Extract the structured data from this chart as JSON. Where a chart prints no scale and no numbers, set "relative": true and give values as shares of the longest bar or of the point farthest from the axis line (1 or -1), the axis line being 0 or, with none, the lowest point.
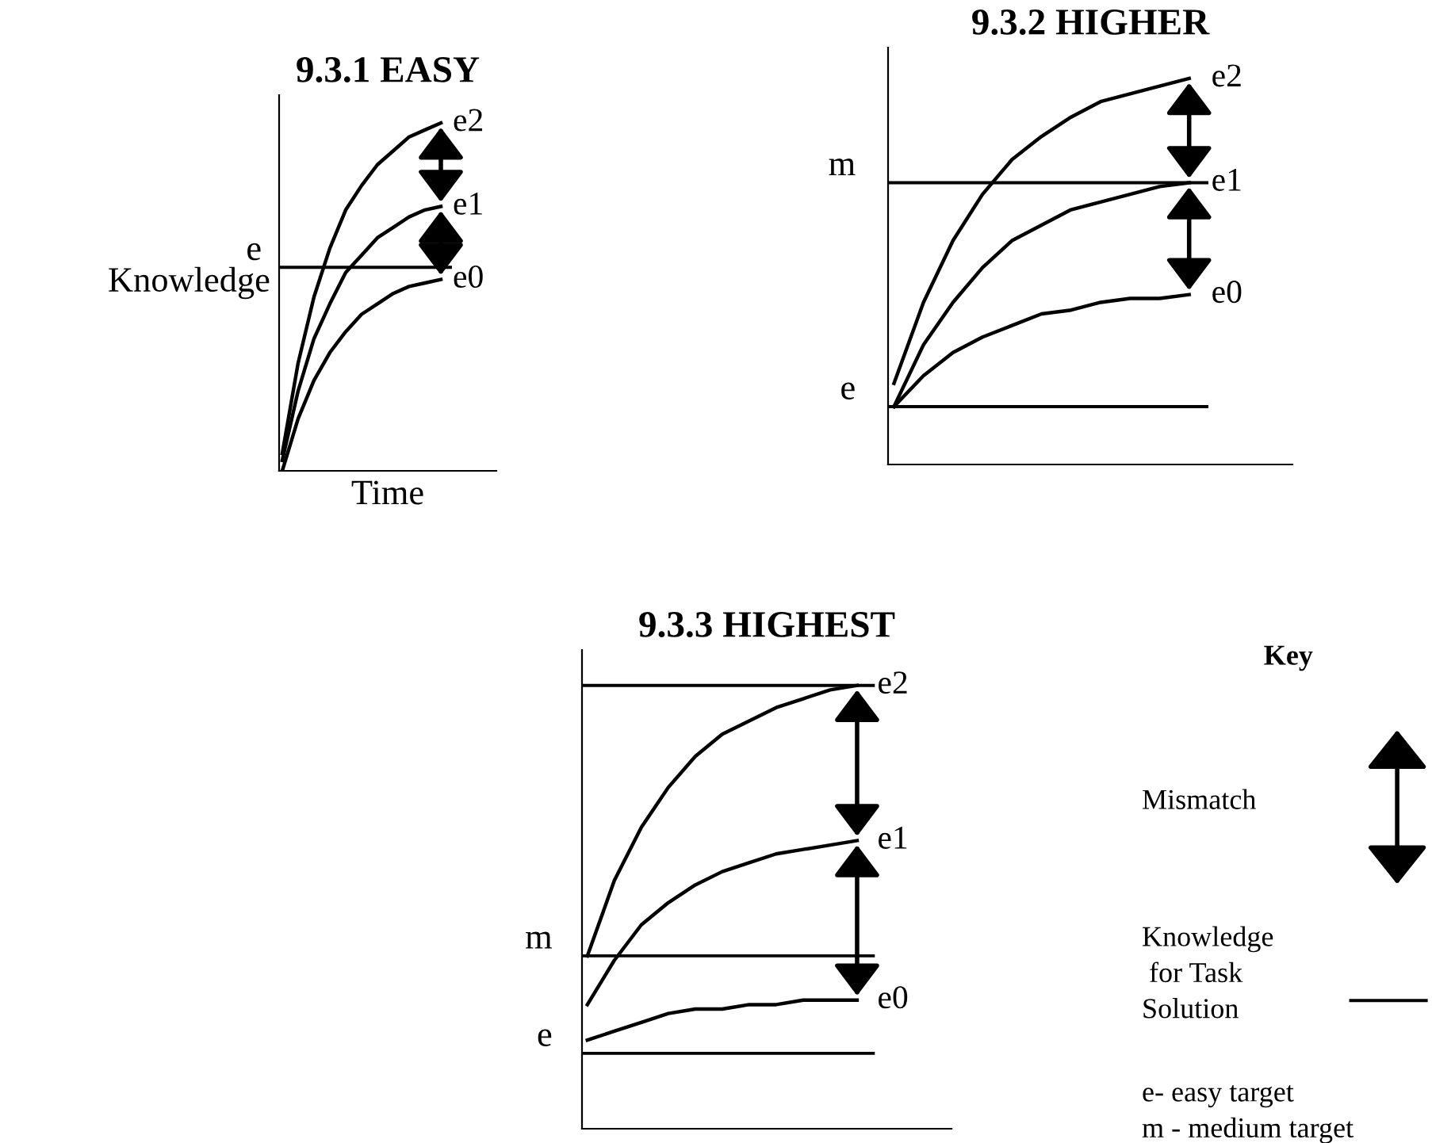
{
  "chart_data": [
    {
      "type": "line",
      "title": "9.3.1 EASY",
      "xlabel": "Time",
      "ylabel": "Knowledge",
      "relative": true,
      "categories": [
        null,
        null,
        null,
        null,
        null,
        null,
        null,
        null,
        null,
        null,
        null
      ],
      "series": [
        {
          "name": "e2",
          "color": "#000000",
          "values": [
            0.05,
            0.31,
            0.5,
            0.64,
            0.75,
            0.82,
            0.88,
            0.92,
            0.96,
            0.98,
            1.0
          ]
        },
        {
          "name": "e1",
          "color": "#000000",
          "values": [
            0.03,
            0.23,
            0.38,
            0.48,
            0.57,
            0.62,
            0.67,
            0.7,
            0.73,
            0.75,
            0.76
          ]
        },
        {
          "name": "e0",
          "color": "#000000",
          "values": [
            0.0,
            0.15,
            0.26,
            0.34,
            0.4,
            0.45,
            0.48,
            0.51,
            0.53,
            0.54,
            0.55
          ]
        }
      ],
      "ref_lines": [
        {
          "axis": "y",
          "value": 0.585,
          "label": "e",
          "color": "#000000"
        }
      ],
      "legend": "right"
    },
    {
      "type": "line",
      "title": "9.3.2 HIGHER",
      "relative": true,
      "categories": [
        null,
        null,
        null,
        null,
        null,
        null,
        null,
        null,
        null,
        null,
        null
      ],
      "series": [
        {
          "name": "e2",
          "color": "#000000",
          "values": [
            0.21,
            0.42,
            0.58,
            0.7,
            0.79,
            0.85,
            0.9,
            0.94,
            0.96,
            0.98,
            1.0
          ]
        },
        {
          "name": "e1",
          "color": "#000000",
          "values": [
            0.15,
            0.31,
            0.42,
            0.51,
            0.58,
            0.62,
            0.66,
            0.68,
            0.7,
            0.72,
            0.73
          ]
        },
        {
          "name": "e0",
          "color": "#000000",
          "values": [
            0.15,
            0.23,
            0.29,
            0.33,
            0.36,
            0.39,
            0.4,
            0.42,
            0.43,
            0.43,
            0.44
          ]
        }
      ],
      "ref_lines": [
        {
          "axis": "y",
          "value": 0.73,
          "label": "m",
          "color": "#000000"
        },
        {
          "axis": "y",
          "value": 0.15,
          "label": "e",
          "color": "#000000"
        }
      ],
      "legend": "right"
    },
    {
      "type": "line",
      "title": "9.3.3 HIGHEST",
      "relative": true,
      "categories": [
        null,
        null,
        null,
        null,
        null,
        null,
        null,
        null,
        null,
        null,
        null
      ],
      "series": [
        {
          "name": "e2",
          "color": "#000000",
          "values": [
            0.39,
            0.56,
            0.68,
            0.77,
            0.84,
            0.89,
            0.92,
            0.95,
            0.97,
            0.99,
            1.0
          ]
        },
        {
          "name": "e1",
          "color": "#000000",
          "values": [
            0.28,
            0.38,
            0.46,
            0.51,
            0.55,
            0.58,
            0.6,
            0.62,
            0.63,
            0.64,
            0.65
          ]
        },
        {
          "name": "e0",
          "color": "#000000",
          "values": [
            0.2,
            0.22,
            0.24,
            0.26,
            0.27,
            0.27,
            0.28,
            0.28,
            0.29,
            0.29,
            0.29
          ]
        }
      ],
      "ref_lines": [
        {
          "axis": "y",
          "value": 1.0,
          "label": null,
          "color": "#000000"
        },
        {
          "axis": "y",
          "value": 0.39,
          "label": "m",
          "color": "#000000"
        },
        {
          "axis": "y",
          "value": 0.17,
          "label": "e",
          "color": "#000000"
        }
      ],
      "legend": "right"
    },
    {
      "type": "other",
      "title": "Key",
      "annotations": [
        "Mismatch",
        "Knowledge\n for Task\nSolution",
        "e- easy target\nm - medium target"
      ]
    }
  ]
}
